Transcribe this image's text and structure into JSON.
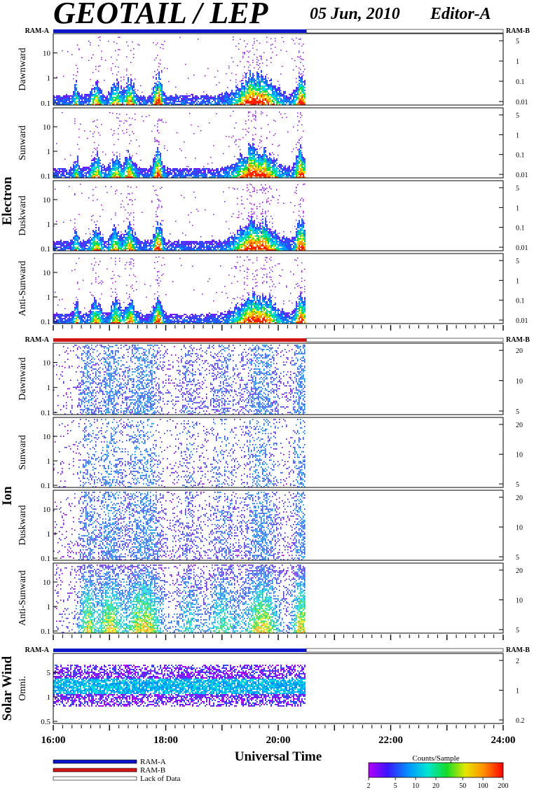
{
  "header": {
    "title": "GEOTAIL / LEP",
    "date": "05 Jun, 2010",
    "editor": "Editor-A"
  },
  "ram_labels": {
    "left": "RAM-A",
    "right": "RAM-B"
  },
  "colors": {
    "ram_a": "#0a14c8",
    "ram_b": "#d21414",
    "lack": "#ffffff",
    "frame": "#000000"
  },
  "chart_data": {
    "type": "heatmap",
    "x_axis": {
      "title": "Universal Time",
      "range_hours": [
        16,
        24
      ],
      "ticks": [
        "16:00",
        "18:00",
        "20:00",
        "22:00",
        "24:00"
      ],
      "data_end_hour": 20.5
    },
    "groups": [
      {
        "name": "Electron",
        "ram_state": "RAM-A",
        "left_ticks": [
          "10",
          "1",
          "0.1"
        ],
        "right_ticks": [
          "5",
          "1",
          "0.1",
          "0.01"
        ],
        "panels": [
          {
            "label": "Dawnward"
          },
          {
            "label": "Sunward"
          },
          {
            "label": "Duskward"
          },
          {
            "label": "Anti-Sunward"
          }
        ]
      },
      {
        "name": "Ion",
        "ram_state": "RAM-B",
        "left_ticks": [
          "10",
          "1",
          "0.1"
        ],
        "right_ticks": [
          "20",
          "10",
          "5"
        ],
        "panels": [
          {
            "label": "Dawnward"
          },
          {
            "label": "Sunward"
          },
          {
            "label": "Duskward"
          },
          {
            "label": "Anti-Sunward"
          }
        ]
      },
      {
        "name": "Solar Wind",
        "ram_state": "RAM-A",
        "left_ticks": [
          "5",
          "1",
          "0.5"
        ],
        "right_ticks": [
          "2",
          "1",
          "0.2"
        ],
        "panels": [
          {
            "label": "Omni."
          }
        ]
      }
    ],
    "legend": {
      "items": [
        "RAM-A",
        "RAM-B",
        "Lack of Data"
      ]
    },
    "colorbar": {
      "title": "Counts/Sample",
      "ticks": [
        "2",
        "5",
        "10",
        "20",
        "50",
        "100",
        "200"
      ],
      "range": [
        2,
        200
      ],
      "scale": "log"
    }
  }
}
